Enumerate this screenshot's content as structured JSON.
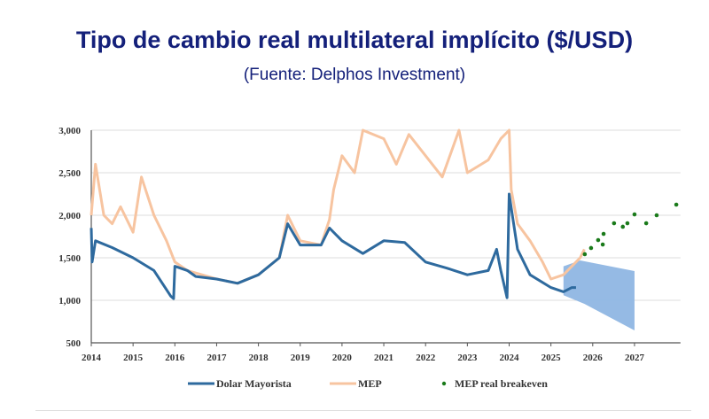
{
  "title": "Tipo de cambio real multilateral implícito ($/USD)",
  "subtitle": "(Fuente: Delphos Investment)",
  "chart_data": {
    "type": "line",
    "title": "Tipo de cambio real multilateral implícito ($/USD)",
    "xlabel": "",
    "ylabel": "",
    "xlim": [
      2014,
      2028.1
    ],
    "ylim": [
      500,
      3000
    ],
    "grid": true,
    "legend": "bottom",
    "x_ticks": [
      "2014",
      "2015",
      "2016",
      "2017",
      "2018",
      "2019",
      "2020",
      "2021",
      "2022",
      "2023",
      "2024",
      "2025",
      "2026",
      "2027"
    ],
    "y_ticks": [
      "500",
      "1,000",
      "1,500",
      "2,000",
      "2,500",
      "3,000"
    ],
    "series": [
      {
        "name": "Dolar Mayorista",
        "color": "#2e6a9e",
        "type": "line",
        "points": [
          [
            2014,
            1850
          ],
          [
            2014.02,
            1450
          ],
          [
            2014.1,
            1700
          ],
          [
            2014.5,
            1620
          ],
          [
            2015,
            1500
          ],
          [
            2015.5,
            1350
          ],
          [
            2015.9,
            1050
          ],
          [
            2015.97,
            1020
          ],
          [
            2016,
            1400
          ],
          [
            2016.3,
            1350
          ],
          [
            2016.5,
            1280
          ],
          [
            2017,
            1250
          ],
          [
            2017.5,
            1200
          ],
          [
            2018,
            1300
          ],
          [
            2018.5,
            1500
          ],
          [
            2018.7,
            1900
          ],
          [
            2019,
            1650
          ],
          [
            2019.5,
            1650
          ],
          [
            2019.7,
            1850
          ],
          [
            2020,
            1700
          ],
          [
            2020.5,
            1550
          ],
          [
            2021,
            1700
          ],
          [
            2021.5,
            1680
          ],
          [
            2022,
            1450
          ],
          [
            2022.5,
            1380
          ],
          [
            2023,
            1300
          ],
          [
            2023.5,
            1350
          ],
          [
            2023.7,
            1600
          ],
          [
            2023.8,
            1350
          ],
          [
            2023.95,
            1030
          ],
          [
            2024,
            2250
          ],
          [
            2024.2,
            1600
          ],
          [
            2024.5,
            1300
          ],
          [
            2025,
            1150
          ],
          [
            2025.3,
            1100
          ],
          [
            2025.5,
            1150
          ],
          [
            2025.6,
            1150
          ]
        ]
      },
      {
        "name": "MEP",
        "color": "#f7c4a0",
        "type": "line",
        "points": [
          [
            2014,
            2000
          ],
          [
            2014.1,
            2600
          ],
          [
            2014.3,
            2000
          ],
          [
            2014.5,
            1900
          ],
          [
            2014.7,
            2100
          ],
          [
            2015,
            1800
          ],
          [
            2015.2,
            2450
          ],
          [
            2015.5,
            2000
          ],
          [
            2015.8,
            1700
          ],
          [
            2016,
            1450
          ],
          [
            2016.3,
            1350
          ],
          [
            2017,
            1250
          ],
          [
            2017.5,
            1200
          ],
          [
            2018,
            1300
          ],
          [
            2018.5,
            1500
          ],
          [
            2018.7,
            2000
          ],
          [
            2019,
            1700
          ],
          [
            2019.5,
            1650
          ],
          [
            2019.7,
            1950
          ],
          [
            2019.8,
            2300
          ],
          [
            2020,
            2700
          ],
          [
            2020.3,
            2500
          ],
          [
            2020.5,
            3000
          ],
          [
            2021,
            2900
          ],
          [
            2021.3,
            2600
          ],
          [
            2021.6,
            2950
          ],
          [
            2022,
            2700
          ],
          [
            2022.4,
            2450
          ],
          [
            2022.8,
            3000
          ],
          [
            2023,
            2500
          ],
          [
            2023.5,
            2650
          ],
          [
            2023.8,
            2900
          ],
          [
            2024,
            3000
          ],
          [
            2024.05,
            2300
          ],
          [
            2024.2,
            1900
          ],
          [
            2024.5,
            1700
          ],
          [
            2024.8,
            1450
          ],
          [
            2025,
            1250
          ],
          [
            2025.3,
            1300
          ],
          [
            2025.5,
            1400
          ],
          [
            2025.7,
            1500
          ],
          [
            2025.8,
            1600
          ]
        ]
      },
      {
        "name": "MEP real breakeven",
        "color": "#1a7a1a",
        "type": "scatter",
        "points": [
          [
            2025.81,
            1542
          ],
          [
            2025.96,
            1615
          ],
          [
            2026.13,
            1708
          ],
          [
            2026.24,
            1656
          ],
          [
            2026.26,
            1781
          ],
          [
            2026.51,
            1906
          ],
          [
            2026.72,
            1865
          ],
          [
            2026.83,
            1906
          ],
          [
            2027.0,
            2010
          ],
          [
            2027.28,
            1906
          ],
          [
            2027.53,
            2000
          ],
          [
            2028.0,
            2125
          ]
        ]
      }
    ],
    "band": {
      "color": "#8fb6e3",
      "upper": [
        [
          2025.3,
          1400
        ],
        [
          2025.7,
          1469
        ],
        [
          2027.0,
          1344
        ]
      ],
      "lower": [
        [
          2025.3,
          1060
        ],
        [
          2025.8,
          958
        ],
        [
          2027.0,
          646
        ]
      ]
    }
  }
}
